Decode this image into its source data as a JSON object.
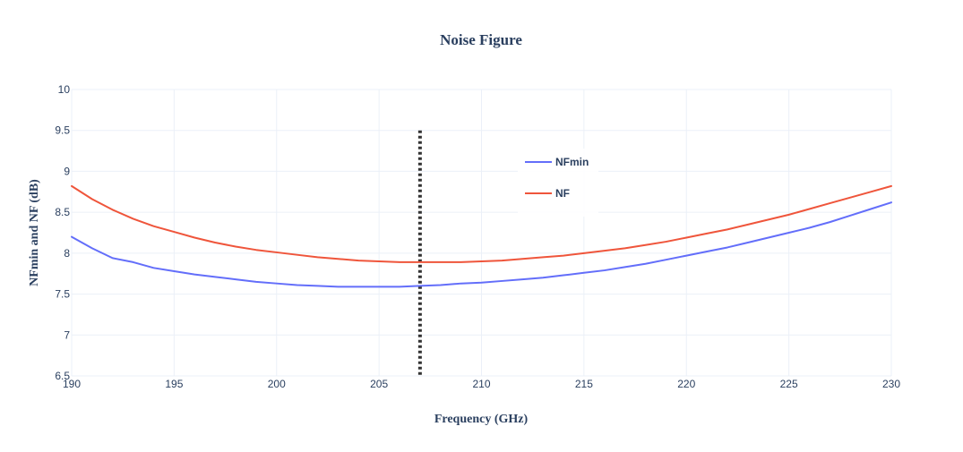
{
  "chart_data": {
    "type": "line",
    "title": "Noise Figure",
    "xlabel": "Frequency (GHz)",
    "ylabel": "NFmin and NF (dB)",
    "xlim": [
      190,
      230
    ],
    "ylim": [
      6.5,
      10
    ],
    "xticks": [
      190,
      195,
      200,
      205,
      210,
      215,
      220,
      225,
      230
    ],
    "yticks": [
      6.5,
      7,
      7.5,
      8,
      8.5,
      9,
      9.5,
      10
    ],
    "ytick_labels": [
      "6.5",
      "7",
      "7.5",
      "8",
      "8.5",
      "9",
      "9.5",
      "10"
    ],
    "grid": true,
    "legend_position": "top-right",
    "marker_line": {
      "x": 207,
      "y_range": [
        6.5,
        9.5
      ],
      "style": "dotted",
      "color": "#333333"
    },
    "series": [
      {
        "name": "NFmin",
        "color": "#636efa",
        "x": [
          190,
          191,
          192,
          193,
          194,
          195,
          196,
          197,
          198,
          199,
          200,
          201,
          202,
          203,
          204,
          205,
          206,
          207,
          208,
          209,
          210,
          211,
          212,
          213,
          214,
          215,
          216,
          217,
          218,
          219,
          220,
          221,
          222,
          223,
          224,
          225,
          226,
          227,
          228,
          229,
          230
        ],
        "y": [
          8.2,
          8.06,
          7.94,
          7.89,
          7.82,
          7.78,
          7.74,
          7.71,
          7.68,
          7.65,
          7.63,
          7.61,
          7.6,
          7.59,
          7.59,
          7.59,
          7.59,
          7.6,
          7.61,
          7.63,
          7.64,
          7.66,
          7.68,
          7.7,
          7.73,
          7.76,
          7.79,
          7.83,
          7.87,
          7.92,
          7.97,
          8.02,
          8.07,
          8.13,
          8.19,
          8.25,
          8.31,
          8.38,
          8.46,
          8.54,
          8.62
        ]
      },
      {
        "name": "NF",
        "color": "#ef553b",
        "x": [
          190,
          191,
          192,
          193,
          194,
          195,
          196,
          197,
          198,
          199,
          200,
          201,
          202,
          203,
          204,
          205,
          206,
          207,
          208,
          209,
          210,
          211,
          212,
          213,
          214,
          215,
          216,
          217,
          218,
          219,
          220,
          221,
          222,
          223,
          224,
          225,
          226,
          227,
          228,
          229,
          230
        ],
        "y": [
          8.82,
          8.66,
          8.53,
          8.42,
          8.33,
          8.26,
          8.19,
          8.13,
          8.08,
          8.04,
          8.01,
          7.98,
          7.95,
          7.93,
          7.91,
          7.9,
          7.89,
          7.89,
          7.89,
          7.89,
          7.9,
          7.91,
          7.93,
          7.95,
          7.97,
          8.0,
          8.03,
          8.06,
          8.1,
          8.14,
          8.19,
          8.24,
          8.29,
          8.35,
          8.41,
          8.47,
          8.54,
          8.61,
          8.68,
          8.75,
          8.82
        ]
      }
    ]
  }
}
